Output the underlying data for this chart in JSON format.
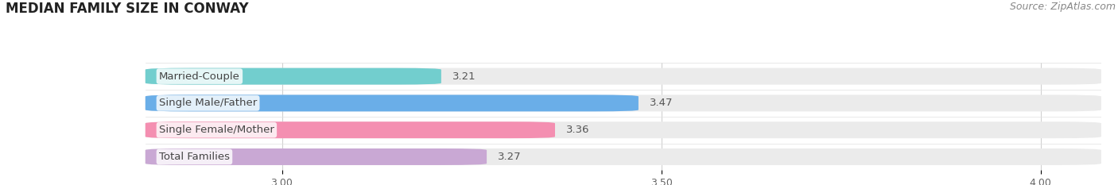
{
  "title": "MEDIAN FAMILY SIZE IN CONWAY",
  "source": "Source: ZipAtlas.com",
  "categories": [
    "Married-Couple",
    "Single Male/Father",
    "Single Female/Mother",
    "Total Families"
  ],
  "values": [
    3.21,
    3.47,
    3.36,
    3.27
  ],
  "bar_colors": [
    "#72cece",
    "#6aaee8",
    "#f48fb1",
    "#c9a8d4"
  ],
  "xlim": [
    2.82,
    4.08
  ],
  "xticks": [
    3.0,
    3.5,
    4.0
  ],
  "xtick_labels": [
    "3.00",
    "3.50",
    "4.00"
  ],
  "bar_height": 0.62,
  "label_fontsize": 9.5,
  "value_fontsize": 9.5,
  "title_fontsize": 12,
  "source_fontsize": 9,
  "background_color": "#ffffff",
  "bar_bg_color": "#ebebeb",
  "bar_gap": 0.18,
  "grid_color": "#d0d0d0",
  "text_color": "#444444",
  "value_color": "#555555",
  "source_color": "#888888",
  "title_color": "#222222"
}
